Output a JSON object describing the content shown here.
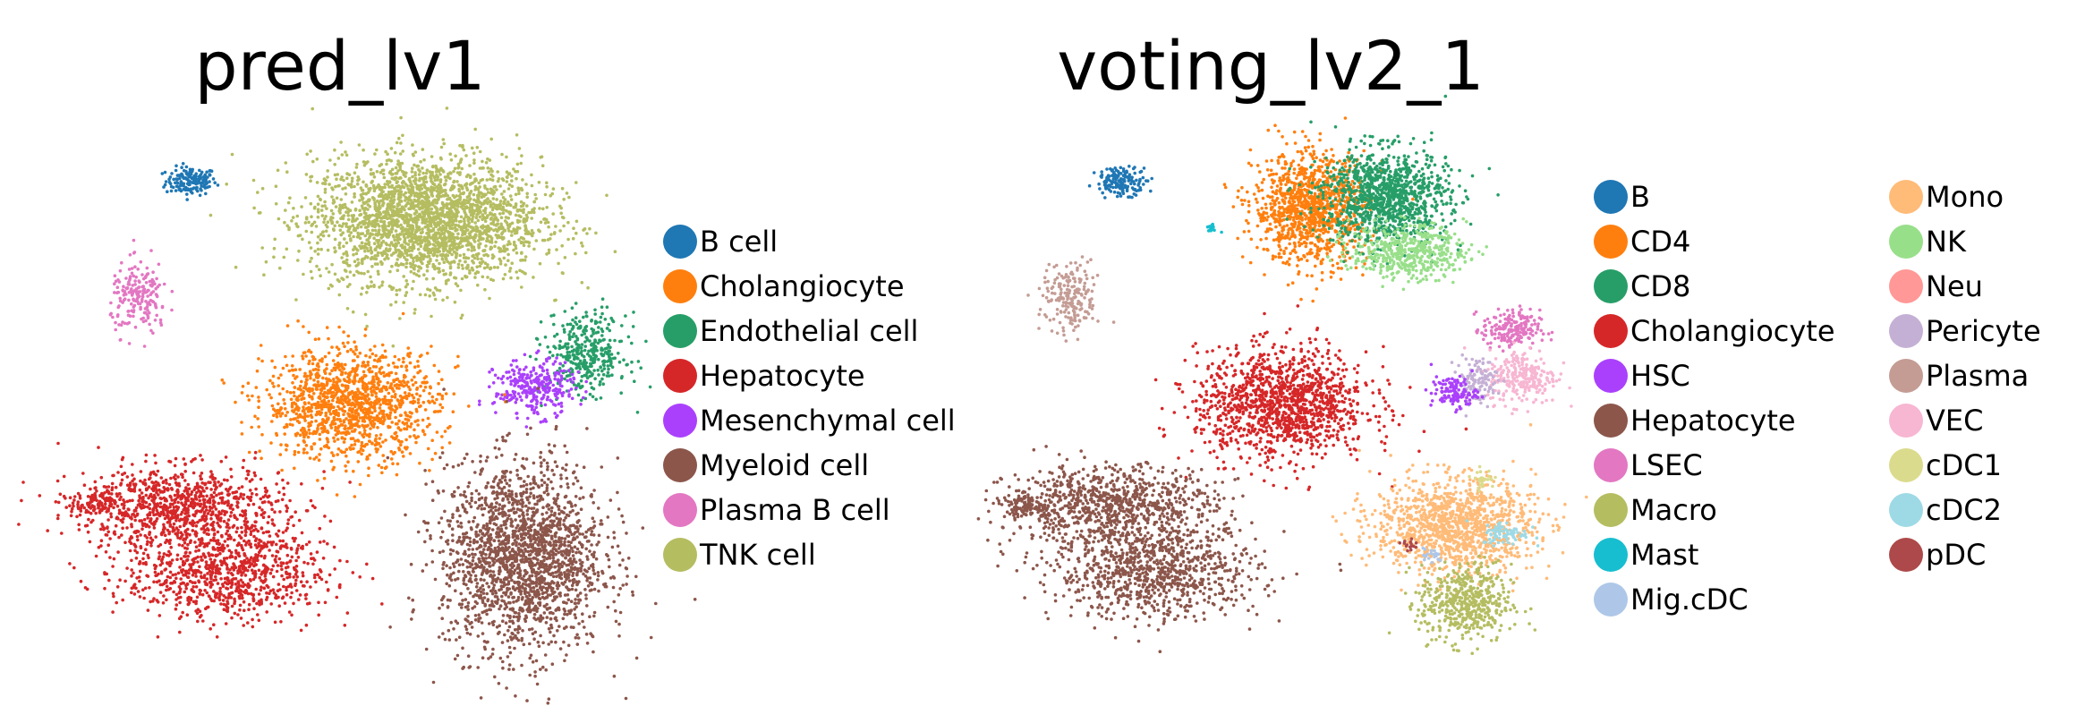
{
  "chart_data": [
    {
      "type": "scatter",
      "title": "pred_lv1",
      "xlabel": "",
      "ylabel": "",
      "grid": false,
      "axes_visible": false,
      "legend_position": "right",
      "categories": [
        {
          "name": "B cell",
          "color": "#1f77b4"
        },
        {
          "name": "Cholangiocyte",
          "color": "#ff7f0e"
        },
        {
          "name": "Endothelial cell",
          "color": "#279e68"
        },
        {
          "name": "Hepatocyte",
          "color": "#d62728"
        },
        {
          "name": "Mesenchymal cell",
          "color": "#aa40fc"
        },
        {
          "name": "Myeloid cell",
          "color": "#8c564b"
        },
        {
          "name": "Plasma B cell",
          "color": "#e377c2"
        },
        {
          "name": "TNK cell",
          "color": "#b5bd61"
        }
      ],
      "clusters": [
        {
          "category": "B cell",
          "x": 0.24,
          "y": 0.78,
          "sx": 0.022,
          "sy": 0.018,
          "n": 160
        },
        {
          "category": "TNK cell",
          "x": 0.65,
          "y": 0.68,
          "sx": 0.1,
          "sy": 0.08,
          "n": 2600
        },
        {
          "category": "Plasma B cell",
          "x": 0.15,
          "y": 0.48,
          "sx": 0.025,
          "sy": 0.045,
          "n": 200
        },
        {
          "category": "Endothelial cell",
          "x": 0.93,
          "y": 0.34,
          "sx": 0.035,
          "sy": 0.05,
          "n": 380
        },
        {
          "category": "Mesenchymal cell",
          "x": 0.84,
          "y": 0.25,
          "sx": 0.035,
          "sy": 0.035,
          "n": 300
        },
        {
          "category": "Cholangiocyte",
          "x": 0.52,
          "y": 0.21,
          "sx": 0.075,
          "sy": 0.07,
          "n": 1300
        },
        {
          "category": "Hepatocyte",
          "x": 0.22,
          "y": -0.05,
          "sx": 0.09,
          "sy": 0.05,
          "n": 900
        },
        {
          "category": "Hepatocyte",
          "x": 0.3,
          "y": -0.22,
          "sx": 0.09,
          "sy": 0.06,
          "n": 900
        },
        {
          "category": "Hepatocyte",
          "x": 0.07,
          "y": -0.05,
          "sx": 0.02,
          "sy": 0.015,
          "n": 90
        },
        {
          "category": "Myeloid cell",
          "x": 0.82,
          "y": -0.18,
          "sx": 0.07,
          "sy": 0.12,
          "n": 2000
        }
      ]
    },
    {
      "type": "scatter",
      "title": "voting_lv2_1",
      "xlabel": "",
      "ylabel": "",
      "grid": false,
      "axes_visible": false,
      "legend_position": "right",
      "categories": [
        {
          "name": "B",
          "color": "#1f77b4"
        },
        {
          "name": "CD4",
          "color": "#ff7f0e"
        },
        {
          "name": "CD8",
          "color": "#279e68"
        },
        {
          "name": "Cholangiocyte",
          "color": "#d62728"
        },
        {
          "name": "HSC",
          "color": "#aa40fc"
        },
        {
          "name": "Hepatocyte",
          "color": "#8c564b"
        },
        {
          "name": "LSEC",
          "color": "#e377c2"
        },
        {
          "name": "Macro",
          "color": "#b5bd61"
        },
        {
          "name": "Mast",
          "color": "#17becf"
        },
        {
          "name": "Mig.cDC",
          "color": "#aec7e8"
        },
        {
          "name": "Mono",
          "color": "#ffbb78"
        },
        {
          "name": "NK",
          "color": "#98df8a"
        },
        {
          "name": "Neu",
          "color": "#ff9896"
        },
        {
          "name": "Pericyte",
          "color": "#c5b0d5"
        },
        {
          "name": "Plasma",
          "color": "#c49c94"
        },
        {
          "name": "VEC",
          "color": "#f7b6d2"
        },
        {
          "name": "cDC1",
          "color": "#dbdb8d"
        },
        {
          "name": "cDC2",
          "color": "#9edae5"
        },
        {
          "name": "pDC",
          "color": "#ad494a"
        }
      ],
      "clusters": [
        {
          "category": "B",
          "x": 0.24,
          "y": 0.78,
          "sx": 0.022,
          "sy": 0.018,
          "n": 160
        },
        {
          "category": "CD4",
          "x": 0.57,
          "y": 0.71,
          "sx": 0.05,
          "sy": 0.07,
          "n": 1100
        },
        {
          "category": "CD8",
          "x": 0.7,
          "y": 0.74,
          "sx": 0.055,
          "sy": 0.06,
          "n": 1100
        },
        {
          "category": "NK",
          "x": 0.74,
          "y": 0.6,
          "sx": 0.05,
          "sy": 0.035,
          "n": 500
        },
        {
          "category": "Mast",
          "x": 0.4,
          "y": 0.66,
          "sx": 0.006,
          "sy": 0.006,
          "n": 12
        },
        {
          "category": "Plasma",
          "x": 0.15,
          "y": 0.48,
          "sx": 0.025,
          "sy": 0.045,
          "n": 200
        },
        {
          "category": "LSEC",
          "x": 0.92,
          "y": 0.4,
          "sx": 0.025,
          "sy": 0.025,
          "n": 200
        },
        {
          "category": "VEC",
          "x": 0.94,
          "y": 0.28,
          "sx": 0.03,
          "sy": 0.035,
          "n": 250
        },
        {
          "category": "Pericyte",
          "x": 0.86,
          "y": 0.27,
          "sx": 0.018,
          "sy": 0.03,
          "n": 120
        },
        {
          "category": "HSC",
          "x": 0.82,
          "y": 0.24,
          "sx": 0.02,
          "sy": 0.02,
          "n": 120
        },
        {
          "category": "Cholangiocyte",
          "x": 0.52,
          "y": 0.21,
          "sx": 0.075,
          "sy": 0.07,
          "n": 1300
        },
        {
          "category": "Hepatocyte",
          "x": 0.22,
          "y": -0.05,
          "sx": 0.09,
          "sy": 0.05,
          "n": 900
        },
        {
          "category": "Hepatocyte",
          "x": 0.3,
          "y": -0.22,
          "sx": 0.09,
          "sy": 0.06,
          "n": 900
        },
        {
          "category": "Hepatocyte",
          "x": 0.07,
          "y": -0.05,
          "sx": 0.02,
          "sy": 0.015,
          "n": 90
        },
        {
          "category": "Mono",
          "x": 0.82,
          "y": -0.1,
          "sx": 0.07,
          "sy": 0.06,
          "n": 1200
        },
        {
          "category": "Macro",
          "x": 0.84,
          "y": -0.3,
          "sx": 0.04,
          "sy": 0.05,
          "n": 500
        },
        {
          "category": "cDC2",
          "x": 0.91,
          "y": -0.12,
          "sx": 0.02,
          "sy": 0.015,
          "n": 80
        },
        {
          "category": "cDC1",
          "x": 0.87,
          "y": 0.02,
          "sx": 0.01,
          "sy": 0.012,
          "n": 30
        },
        {
          "category": "Mig.cDC",
          "x": 0.78,
          "y": -0.18,
          "sx": 0.01,
          "sy": 0.01,
          "n": 20
        },
        {
          "category": "pDC",
          "x": 0.74,
          "y": -0.15,
          "sx": 0.01,
          "sy": 0.01,
          "n": 15
        }
      ]
    }
  ]
}
